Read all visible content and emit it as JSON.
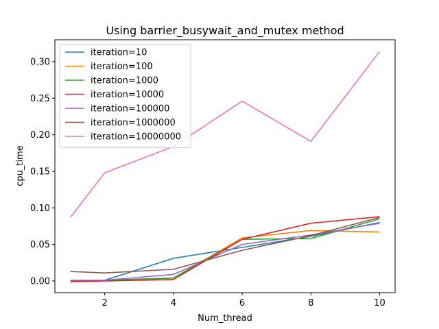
{
  "chart_data": {
    "type": "line",
    "title": "Using barrier_busywait_and_mutex method",
    "xlabel": "Num_thread",
    "ylabel": "cpu_time",
    "x": [
      1,
      2,
      4,
      6,
      8,
      10
    ],
    "xlim": [
      0.55,
      10.45
    ],
    "ylim": [
      -0.016,
      0.33
    ],
    "xticks": [
      2,
      4,
      6,
      8,
      10
    ],
    "xtick_labels": [
      "2",
      "4",
      "6",
      "8",
      "10"
    ],
    "yticks": [
      0.0,
      0.05,
      0.1,
      0.15,
      0.2,
      0.25,
      0.3
    ],
    "ytick_labels": [
      "0.00",
      "0.05",
      "0.10",
      "0.15",
      "0.20",
      "0.25",
      "0.30"
    ],
    "grid": false,
    "legend_position": "upper-left",
    "series": [
      {
        "name": "iteration=10",
        "color": "#1f77b4",
        "values": [
          0.001,
          0.001,
          0.031,
          0.046,
          0.061,
          0.08
        ]
      },
      {
        "name": "iteration=100",
        "color": "#ff7f0e",
        "values": [
          0.0,
          0.001,
          0.004,
          0.059,
          0.069,
          0.067
        ]
      },
      {
        "name": "iteration=1000",
        "color": "#2ca02c",
        "values": [
          0.0,
          0.001,
          0.004,
          0.057,
          0.058,
          0.085
        ]
      },
      {
        "name": "iteration=10000",
        "color": "#d62728",
        "values": [
          -0.001,
          0.0,
          0.002,
          0.057,
          0.079,
          0.088
        ]
      },
      {
        "name": "iteration=100000",
        "color": "#9467bd",
        "values": [
          0.001,
          0.001,
          0.009,
          0.05,
          0.063,
          0.079
        ]
      },
      {
        "name": "iteration=1000000",
        "color": "#8c564b",
        "values": [
          0.013,
          0.011,
          0.016,
          0.042,
          0.062,
          0.087
        ]
      },
      {
        "name": "iteration=10000000",
        "color": "#e377c2",
        "values": [
          0.087,
          0.148,
          0.184,
          0.246,
          0.191,
          0.314
        ]
      }
    ]
  }
}
